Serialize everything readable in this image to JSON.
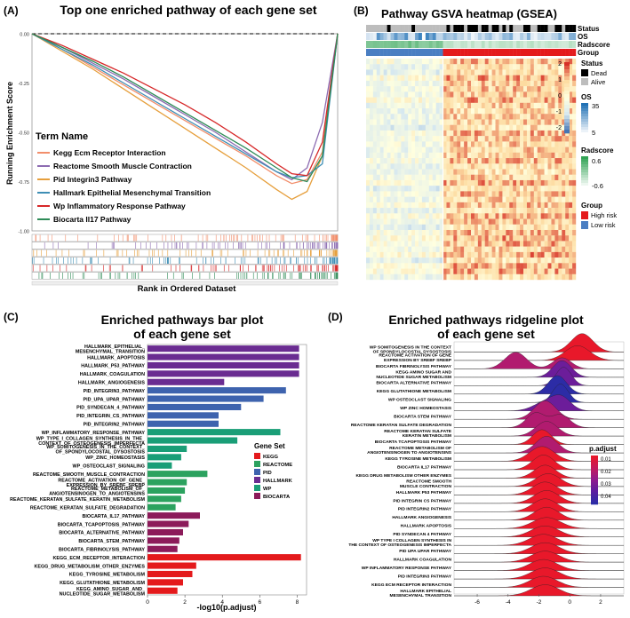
{
  "panels": {
    "a": {
      "letter": "(A)",
      "title": "Top one enriched pathway of each gene set"
    },
    "b": {
      "letter": "(B)",
      "title": "Pathway GSVA heatmap (GSEA)"
    },
    "c": {
      "letter": "(C)",
      "title_line1": "Enriched pathways bar plot",
      "title_line2": "of each gene set"
    },
    "d": {
      "letter": "(D)",
      "title_line1": "Enriched pathways ridgeline plot",
      "title_line2": "of each gene set"
    }
  },
  "chart_data": [
    {
      "type": "line",
      "title": "Top one enriched pathway of each gene set",
      "xlabel": "Rank in Ordered Dataset",
      "ylabel": "Running Enrichment Score",
      "yticks": [
        "0.00",
        "-0.25",
        "-0.50",
        "-0.75",
        "-1.00"
      ],
      "ylim": [
        -1.0,
        0.0
      ],
      "legend_title": "Term Name",
      "legend_position": "left",
      "x": [
        0.0,
        0.1,
        0.2,
        0.3,
        0.4,
        0.5,
        0.6,
        0.7,
        0.8,
        0.85,
        0.9,
        0.95,
        1.0
      ],
      "series": [
        {
          "name": "Kegg Ecm Receptor Interaction",
          "color": "#F28E6B",
          "values": [
            0.0,
            -0.08,
            -0.17,
            -0.26,
            -0.35,
            -0.44,
            -0.53,
            -0.62,
            -0.72,
            -0.76,
            -0.74,
            -0.6,
            0.0
          ]
        },
        {
          "name": "Reactome Smooth Muscle Contraction",
          "color": "#8C6BB1",
          "values": [
            0.0,
            -0.07,
            -0.15,
            -0.23,
            -0.32,
            -0.41,
            -0.5,
            -0.6,
            -0.7,
            -0.74,
            -0.68,
            -0.45,
            0.0
          ]
        },
        {
          "name": "Pid Integrin3 Pathway",
          "color": "#E69F3C",
          "values": [
            0.0,
            -0.09,
            -0.18,
            -0.28,
            -0.38,
            -0.48,
            -0.58,
            -0.68,
            -0.79,
            -0.84,
            -0.8,
            -0.62,
            0.0
          ]
        },
        {
          "name": "Hallmark Epithelial Mesenchymal Transition",
          "color": "#3E8EB5",
          "values": [
            0.0,
            -0.08,
            -0.16,
            -0.25,
            -0.34,
            -0.43,
            -0.52,
            -0.61,
            -0.7,
            -0.73,
            -0.72,
            -0.66,
            0.0
          ]
        },
        {
          "name": "Wp Inflammatory Response Pathway",
          "color": "#D62728",
          "values": [
            0.0,
            -0.06,
            -0.13,
            -0.2,
            -0.28,
            -0.36,
            -0.45,
            -0.55,
            -0.66,
            -0.71,
            -0.72,
            -0.55,
            0.0
          ]
        },
        {
          "name": "Biocarta Il17 Pathway",
          "color": "#2E8B57",
          "values": [
            0.0,
            -0.07,
            -0.14,
            -0.22,
            -0.31,
            -0.4,
            -0.49,
            -0.58,
            -0.68,
            -0.73,
            -0.75,
            -0.62,
            0.0
          ]
        }
      ]
    },
    {
      "type": "heatmap",
      "title": "Pathway GSVA heatmap (GSEA)",
      "annotation_rows": [
        "Status",
        "OS",
        "Radscore",
        "Group"
      ],
      "legends": {
        "status": {
          "title": "Status",
          "items": [
            {
              "label": "Dead",
              "color": "#000000"
            },
            {
              "label": "Alive",
              "color": "#BDBDBD"
            }
          ]
        },
        "os": {
          "title": "OS",
          "max_label": "35",
          "min_label": "5",
          "colors": [
            "#2171B5",
            "#FFFFFF"
          ]
        },
        "radscore": {
          "title": "Radscore",
          "max_label": "0.6",
          "min_label": "-0.6",
          "colors": [
            "#31A354",
            "#FFFFFF"
          ]
        },
        "group": {
          "title": "Group",
          "items": [
            {
              "label": "High risk",
              "color": "#E41A1C"
            },
            {
              "label": "Low risk",
              "color": "#4A7EC2"
            }
          ]
        },
        "value_scale": {
          "ticks": [
            "2",
            "1",
            "0",
            "-1",
            "-2"
          ],
          "colors": [
            "#D73027",
            "#FDDBA0",
            "#FFFFDF",
            "#D6E8F0",
            "#4575B4"
          ]
        }
      }
    },
    {
      "type": "bar",
      "title": "Enriched pathways bar plot of each gene set",
      "xlabel": "-log10(p.adjust)",
      "xticks": [
        "0",
        "2",
        "4",
        "6",
        "8"
      ],
      "xlim": [
        0,
        8.5
      ],
      "legend_title": "Gene Set",
      "legend_position": "right",
      "legend": [
        {
          "name": "KEGG",
          "color": "#E41A1C"
        },
        {
          "name": "REACTOME",
          "color": "#2CA25F"
        },
        {
          "name": "PID",
          "color": "#3E63AE"
        },
        {
          "name": "HALLMARK",
          "color": "#6A2C91"
        },
        {
          "name": "WP",
          "color": "#1A9E77"
        },
        {
          "name": "BIOCARTA",
          "color": "#8C1B5A"
        }
      ],
      "bars": [
        {
          "label": "HALLMARK_EPITHELIAL_\nMESENCHYMAL_TRANSITION",
          "value": 8.1,
          "set": "HALLMARK"
        },
        {
          "label": "HALLMARK_APOPTOSIS",
          "value": 8.1,
          "set": "HALLMARK"
        },
        {
          "label": "HALLMARK_P53_PATHWAY",
          "value": 8.1,
          "set": "HALLMARK"
        },
        {
          "label": "HALLMARK_COAGULATION",
          "value": 8.1,
          "set": "HALLMARK"
        },
        {
          "label": "HALLMARK_ANGIOGENESIS",
          "value": 4.1,
          "set": "HALLMARK"
        },
        {
          "label": "PID_INTEGRIN3_PATHWAY",
          "value": 7.4,
          "set": "PID"
        },
        {
          "label": "PID_UPA_UPAR_PATHWAY",
          "value": 6.2,
          "set": "PID"
        },
        {
          "label": "PID_SYNDECAN_4_PATHWAY",
          "value": 5.0,
          "set": "PID"
        },
        {
          "label": "PID_INTEGRIN_CS_PATHWAY",
          "value": 3.8,
          "set": "PID"
        },
        {
          "label": "PID_INTEGRIN2_PATHWAY",
          "value": 3.8,
          "set": "PID"
        },
        {
          "label": "WP_INFLAMMATORY_RESPONSE_PATHWAY",
          "value": 7.1,
          "set": "WP"
        },
        {
          "label": "WP_TYPE_I_COLLAGEN_SYNTHESIS_IN_THE_\nCONTEXT_OF_OSTEOGENESIS_IMPERFECTA",
          "value": 4.8,
          "set": "WP"
        },
        {
          "label": "WP_SOMITOGENESIS_IN_THE_CONTEXT_\nOF_SPONDYLOCOSTAL_DYSOSTOSIS",
          "value": 2.1,
          "set": "WP"
        },
        {
          "label": "WP_ZINC_HOMEOSTASIS",
          "value": 1.8,
          "set": "WP"
        },
        {
          "label": "WP_OSTEOCLAST_SIGNALING",
          "value": 1.3,
          "set": "WP"
        },
        {
          "label": "REACTOME_SMOOTH_MUSCLE_CONTRACTION",
          "value": 3.2,
          "set": "REACTOME"
        },
        {
          "label": "REACTOME_ACTIVATION_OF_GENE_\nEXPRESSION_BY_SREBF_SREBP",
          "value": 2.1,
          "set": "REACTOME"
        },
        {
          "label": "REACTOME_METABOLISM_OF_\nANGIOTENSINOGEN_TO_ANGIOTENSINS",
          "value": 2.0,
          "set": "REACTOME"
        },
        {
          "label": "REACTOME_KERATAN_SULFATE_KERATIN_METABOLISM",
          "value": 1.8,
          "set": "REACTOME"
        },
        {
          "label": "REACTOME_KERATAN_SULFATE_DEGRADATION",
          "value": 1.5,
          "set": "REACTOME"
        },
        {
          "label": "BIOCARTA_IL17_PATHWAY",
          "value": 2.8,
          "set": "BIOCARTA"
        },
        {
          "label": "BIOCARTA_TCAPOPTOSIS_PATHWAY",
          "value": 2.2,
          "set": "BIOCARTA"
        },
        {
          "label": "BIOCARTA_ALTERNATIVE_PATHWAY",
          "value": 1.9,
          "set": "BIOCARTA"
        },
        {
          "label": "BIOCARTA_STEM_PATHWAY",
          "value": 1.7,
          "set": "BIOCARTA"
        },
        {
          "label": "BIOCARTA_FIBRINOLYSIS_PATHWAY",
          "value": 1.6,
          "set": "BIOCARTA"
        },
        {
          "label": "KEGG_ECM_RECEPTOR_INTERACTION",
          "value": 8.2,
          "set": "KEGG"
        },
        {
          "label": "KEGG_DRUG_METABOLISM_OTHER_ENZYMES",
          "value": 2.6,
          "set": "KEGG"
        },
        {
          "label": "KEGG_TYROSINE_METABOLISM",
          "value": 2.4,
          "set": "KEGG"
        },
        {
          "label": "KEGG_GLUTATHIONE_METABOLISM",
          "value": 1.9,
          "set": "KEGG"
        },
        {
          "label": "KEGG_AMINO_SUGAR_AND_\nNUCLEOTIDE_SUGAR_METABOLISM",
          "value": 1.6,
          "set": "KEGG"
        }
      ]
    },
    {
      "type": "area",
      "title": "Enriched pathways ridgeline plot of each gene set",
      "xticks": [
        "-6",
        "-4",
        "-2",
        "0",
        "2"
      ],
      "xlim": [
        -7.5,
        3.5
      ],
      "legend_title": "p.adjust",
      "legend_ticks": [
        "0.01",
        "0.02",
        "0.03",
        "0.04"
      ],
      "legend_colors": [
        "#E8182A",
        "#C21B5F",
        "#8F1B8E",
        "#5A1EA0",
        "#2C2CA6"
      ],
      "ridges": [
        {
          "label": "WP SOMITOGENESIS IN THE CONTEXT\nOF SPONDYLOCOSTAL DYSOSTOSIS",
          "peaks": [
            [
              0.8,
              1.0,
              0.7
            ]
          ],
          "p": 0.01
        },
        {
          "label": "REACTOME ACTIVATION OF GENE\nEXPRESSION BY SREBF SREBP",
          "peaks": [
            [
              0.5,
              0.8,
              0.8
            ]
          ],
          "p": 0.01
        },
        {
          "label": "BIOCARTA FIBRINOLYSIS PATHWAY",
          "peaks": [
            [
              -3.5,
              0.9,
              0.7
            ],
            [
              -0.5,
              0.6,
              0.6
            ]
          ],
          "p": 0.02
        },
        {
          "label": "KEGG AMINO SUGAR AND\nNUCLEOTIDE SUGAR METABOLISM",
          "peaks": [
            [
              -0.5,
              0.9,
              0.6
            ]
          ],
          "p": 0.03
        },
        {
          "label": "BIOCARTA ALTERNATIVE PATHWAY",
          "peaks": [
            [
              -0.4,
              1.0,
              0.5
            ]
          ],
          "p": 0.03
        },
        {
          "label": "KEGG GLUTATHIONE METABOLISM",
          "peaks": [
            [
              -0.8,
              1.0,
              0.6
            ]
          ],
          "p": 0.04
        },
        {
          "label": "WP OSTEOCLAST SIGNALING",
          "peaks": [
            [
              -0.6,
              1.0,
              0.5
            ]
          ],
          "p": 0.04
        },
        {
          "label": "WP ZINC HOMEOSTASIS",
          "peaks": [
            [
              -1.5,
              0.5,
              0.8
            ],
            [
              -0.5,
              0.6,
              0.6
            ]
          ],
          "p": 0.03
        },
        {
          "label": "BIOCARTA STEM PATHWAY",
          "peaks": [
            [
              -1.6,
              1.0,
              0.7
            ]
          ],
          "p": 0.02
        },
        {
          "label": "REACTOME KERATAN SULFATE DEGRADATION",
          "peaks": [
            [
              -2.2,
              0.8,
              0.6
            ],
            [
              -0.6,
              0.7,
              0.6
            ]
          ],
          "p": 0.02
        },
        {
          "label": "REACTOME KERATAN SULFATE\nKERATIN METABOLISM",
          "peaks": [
            [
              -1.5,
              0.8,
              0.7
            ]
          ],
          "p": 0.02
        },
        {
          "label": "BIOCARTA TCAPOPTOSIS PATHWAY",
          "peaks": [
            [
              -1.8,
              0.8,
              0.6
            ]
          ],
          "p": 0.01
        },
        {
          "label": "REACTOME METABOLISM OF\nANGIOTENSINOGEN TO ANGIOTENSINS",
          "peaks": [
            [
              -1.5,
              0.9,
              0.7
            ]
          ],
          "p": 0.02
        },
        {
          "label": "KEGG TYROSINE METABOLISM",
          "peaks": [
            [
              -1.8,
              0.8,
              0.8
            ]
          ],
          "p": 0.01
        },
        {
          "label": "BIOCARTA IL17 PATHWAY",
          "peaks": [
            [
              -1.7,
              0.8,
              0.7
            ]
          ],
          "p": 0.01
        },
        {
          "label": "KEGG DRUG METABOLISM OTHER ENZYMES",
          "peaks": [
            [
              -1.6,
              0.7,
              0.7
            ]
          ],
          "p": 0.01
        },
        {
          "label": "REACTOME SMOOTH\nMUSCLE CONTRACTION",
          "peaks": [
            [
              -1.4,
              0.7,
              0.8
            ]
          ],
          "p": 0.01
        },
        {
          "label": "HALLMARK P53 PATHWAY",
          "peaks": [
            [
              -1.6,
              0.7,
              0.8
            ]
          ],
          "p": 0.01
        },
        {
          "label": "PID INTEGRIN CS PATHWAY",
          "peaks": [
            [
              -1.5,
              0.7,
              0.8
            ]
          ],
          "p": 0.01
        },
        {
          "label": "PID INTEGRIN2 PATHWAY",
          "peaks": [
            [
              -1.6,
              0.7,
              0.8
            ]
          ],
          "p": 0.01
        },
        {
          "label": "HALLMARK ANGIOGENESIS",
          "peaks": [
            [
              -1.5,
              0.7,
              0.8
            ]
          ],
          "p": 0.01
        },
        {
          "label": "HALLMARK APOPTOSIS",
          "peaks": [
            [
              -1.5,
              0.6,
              0.9
            ]
          ],
          "p": 0.01
        },
        {
          "label": "PID SYNDECAN 4 PATHWAY",
          "peaks": [
            [
              -1.6,
              0.6,
              0.9
            ]
          ],
          "p": 0.01
        },
        {
          "label": "WP TYPE I COLLAGEN SYNTHESIS IN\nTHE CONTEXT OF OSTEOGENESIS IMPERFECTA",
          "peaks": [
            [
              -1.7,
              0.6,
              0.9
            ]
          ],
          "p": 0.01
        },
        {
          "label": "PID UPA UPAR PATHWAY",
          "peaks": [
            [
              -1.6,
              0.6,
              0.9
            ]
          ],
          "p": 0.01
        },
        {
          "label": "HALLMARK COAGULATION",
          "peaks": [
            [
              -1.6,
              0.6,
              0.9
            ]
          ],
          "p": 0.01
        },
        {
          "label": "WP INFLAMMATORY RESPONSE PATHWAY",
          "peaks": [
            [
              -1.7,
              0.6,
              0.9
            ]
          ],
          "p": 0.01
        },
        {
          "label": "PID INTEGRIN3 PATHWAY",
          "peaks": [
            [
              -1.6,
              0.6,
              0.9
            ]
          ],
          "p": 0.01
        },
        {
          "label": "KEGG ECM RECEPTOR INTERACTION",
          "peaks": [
            [
              -1.7,
              0.6,
              0.9
            ]
          ],
          "p": 0.01
        },
        {
          "label": "HALLMARK EPITHELIAL\nMESENCHYMAL TRANSITION",
          "peaks": [
            [
              -1.6,
              0.6,
              0.9
            ]
          ],
          "p": 0.01
        }
      ]
    }
  ]
}
